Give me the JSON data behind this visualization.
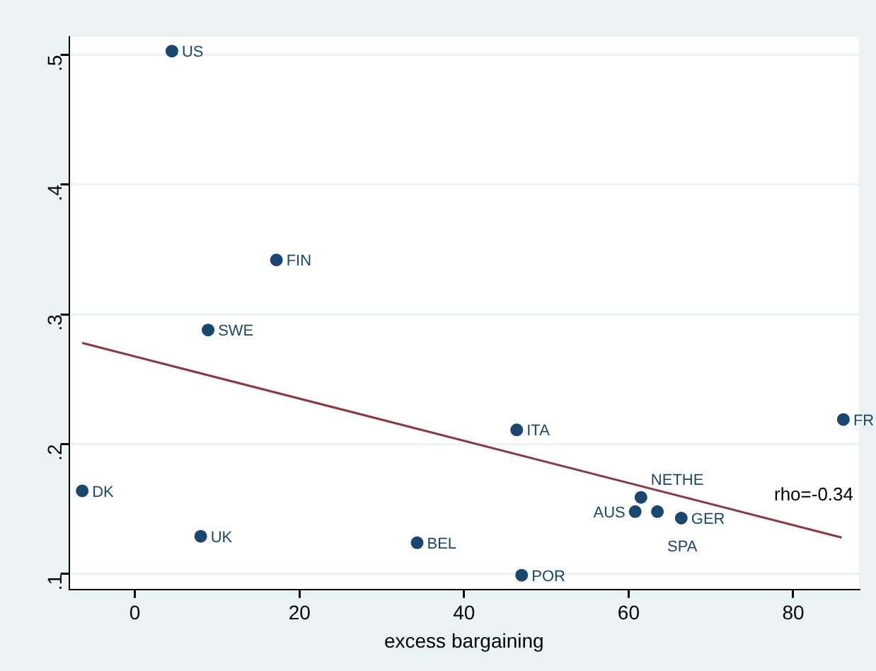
{
  "chart_data": {
    "type": "scatter",
    "xlabel": "excess bargaining",
    "xlim": [
      -8,
      88
    ],
    "xticks": [
      0,
      20,
      40,
      60,
      80
    ],
    "ylim": [
      0.088,
      0.514
    ],
    "yticks": [
      {
        "value": 0.1,
        "label": ".1"
      },
      {
        "value": 0.2,
        "label": ".2"
      },
      {
        "value": 0.3,
        "label": ".3"
      },
      {
        "value": 0.4,
        "label": ".4"
      },
      {
        "value": 0.5,
        "label": ".5"
      }
    ],
    "grid": "y",
    "legend": false,
    "series": [
      {
        "marker": "circle",
        "color": "#1a476f",
        "x": [
          4.5,
          17.2,
          8.9,
          -6.4,
          8.0,
          34.3,
          46.4,
          47.0,
          86.1,
          61.5,
          60.8,
          63.5,
          66.4
        ],
        "values": [
          0.503,
          0.342,
          0.288,
          0.164,
          0.129,
          0.124,
          0.211,
          0.099,
          0.219,
          0.159,
          0.148,
          0.148,
          0.143
        ]
      },
      {
        "type": "line",
        "color": "#90353b",
        "x": [
          -6.4,
          85.9
        ],
        "values": [
          0.278,
          0.128
        ]
      }
    ],
    "annotations": [
      {
        "text": "US",
        "x": 4.5,
        "y": 0.503
      },
      {
        "text": "FIN",
        "x": 17.2,
        "y": 0.342
      },
      {
        "text": "SWE",
        "x": 8.9,
        "y": 0.288
      },
      {
        "text": "DK",
        "x": -6.4,
        "y": 0.164
      },
      {
        "text": "UK",
        "x": 8.0,
        "y": 0.129
      },
      {
        "text": "BEL",
        "x": 34.3,
        "y": 0.124
      },
      {
        "text": "ITA",
        "x": 46.4,
        "y": 0.211
      },
      {
        "text": "POR",
        "x": 47.0,
        "y": 0.099
      },
      {
        "text": "FR",
        "x": 86.1,
        "y": 0.219
      },
      {
        "text": "NETHE",
        "x": 61.5,
        "y": 0.159
      },
      {
        "text": "AUS",
        "x": 60.8,
        "y": 0.148
      },
      {
        "text": "SPA",
        "x": 63.5,
        "y": 0.148
      },
      {
        "text": "GER",
        "x": 66.4,
        "y": 0.143
      },
      "rho=-0.34"
    ]
  }
}
